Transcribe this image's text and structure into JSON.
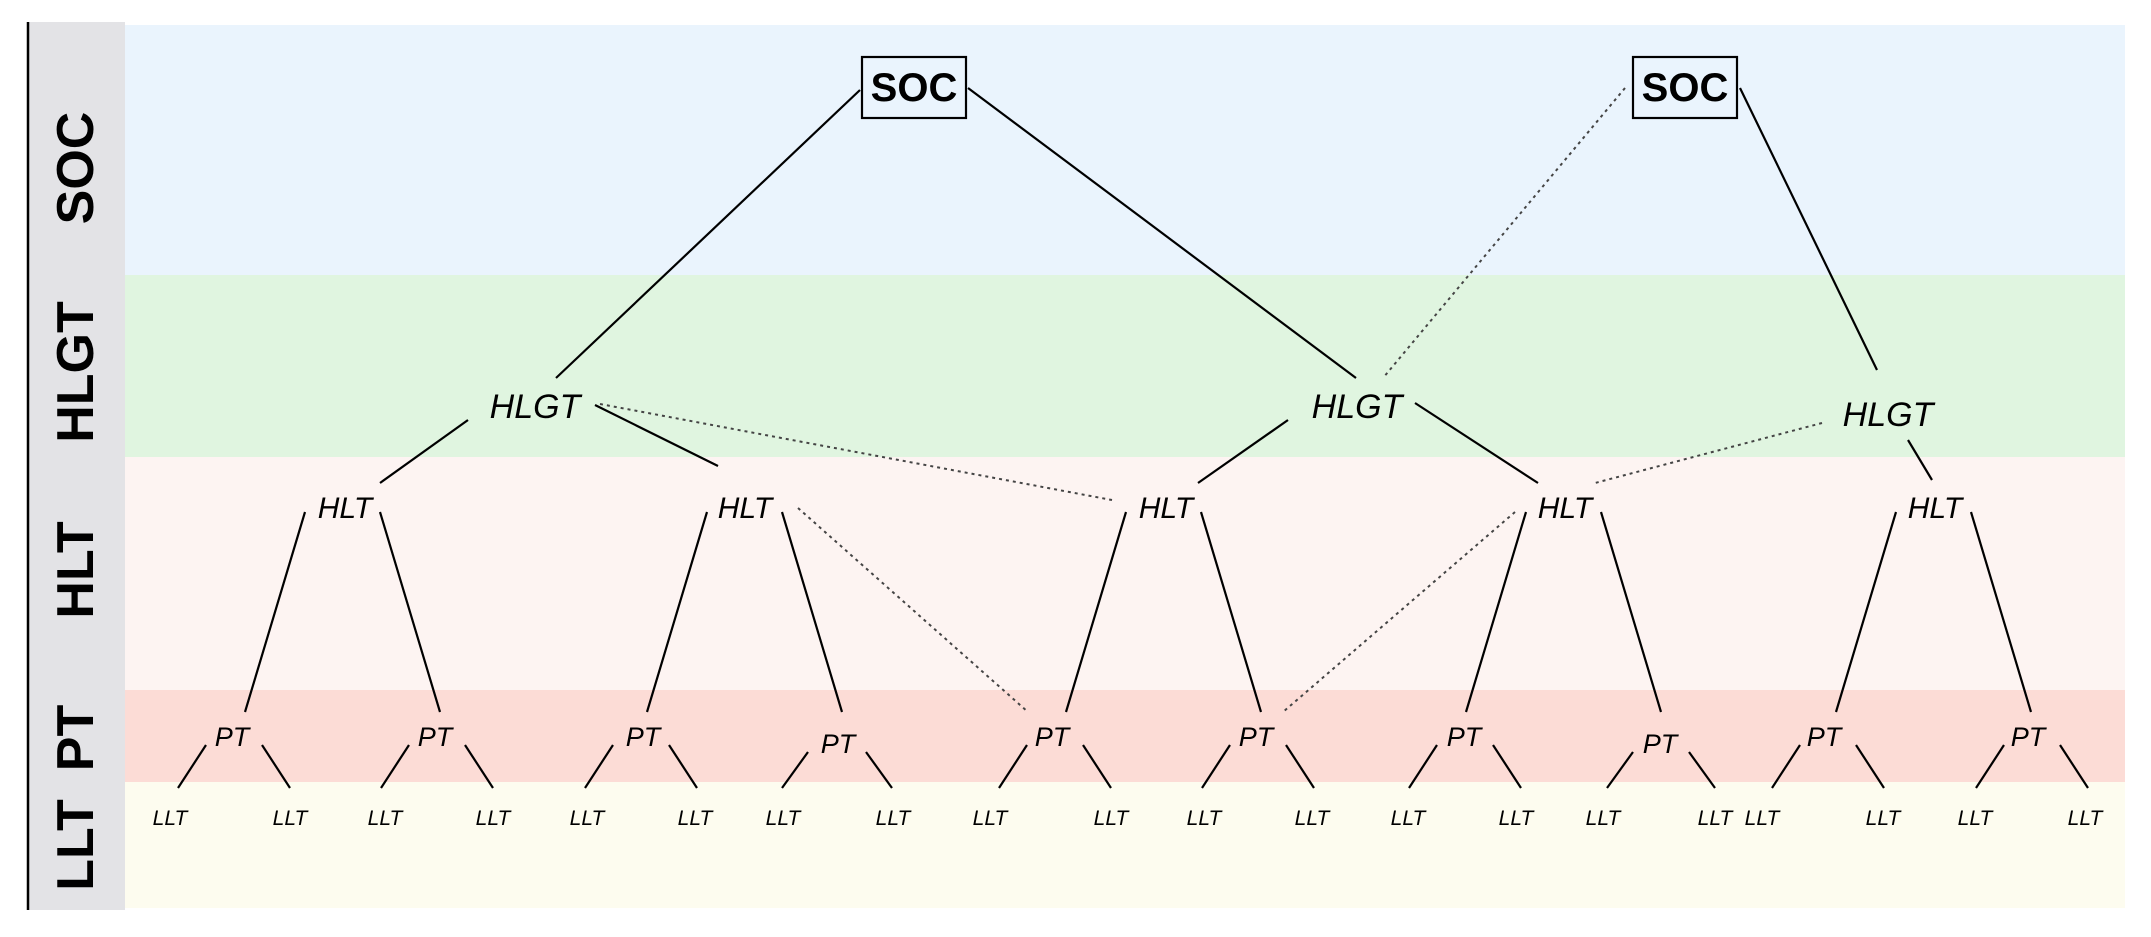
{
  "levels": [
    {
      "id": "soc",
      "label": "SOC",
      "color": "#eaf4fd"
    },
    {
      "id": "hlgt",
      "label": "HLGT",
      "color": "#e0f5e0"
    },
    {
      "id": "hlt",
      "label": "HLT",
      "color": "#fdf4f2"
    },
    {
      "id": "pt",
      "label": "PT",
      "color": "#fcdcd6"
    },
    {
      "id": "llt",
      "label": "LLT",
      "color": "#fdfcef"
    }
  ],
  "colors": {
    "label_column": "#e3e3e6",
    "line": "#000000",
    "dotted_line": "#444444"
  },
  "nodes": {
    "soc": [
      "SOC",
      "SOC"
    ],
    "hlgt": [
      "HLGT",
      "HLGT",
      "HLGT"
    ],
    "hlt": [
      "HLT",
      "HLT",
      "HLT",
      "HLT",
      "HLT"
    ],
    "pt": [
      "PT",
      "PT",
      "PT",
      "PT",
      "PT",
      "PT",
      "PT",
      "PT",
      "PT",
      "PT"
    ],
    "llt": [
      "LLT",
      "LLT",
      "LLT",
      "LLT",
      "LLT",
      "LLT",
      "LLT",
      "LLT",
      "LLT",
      "LLT",
      "LLT",
      "LLT",
      "LLT",
      "LLT",
      "LLT",
      "LLT",
      "LLT",
      "LLT",
      "LLT",
      "LLT"
    ]
  }
}
